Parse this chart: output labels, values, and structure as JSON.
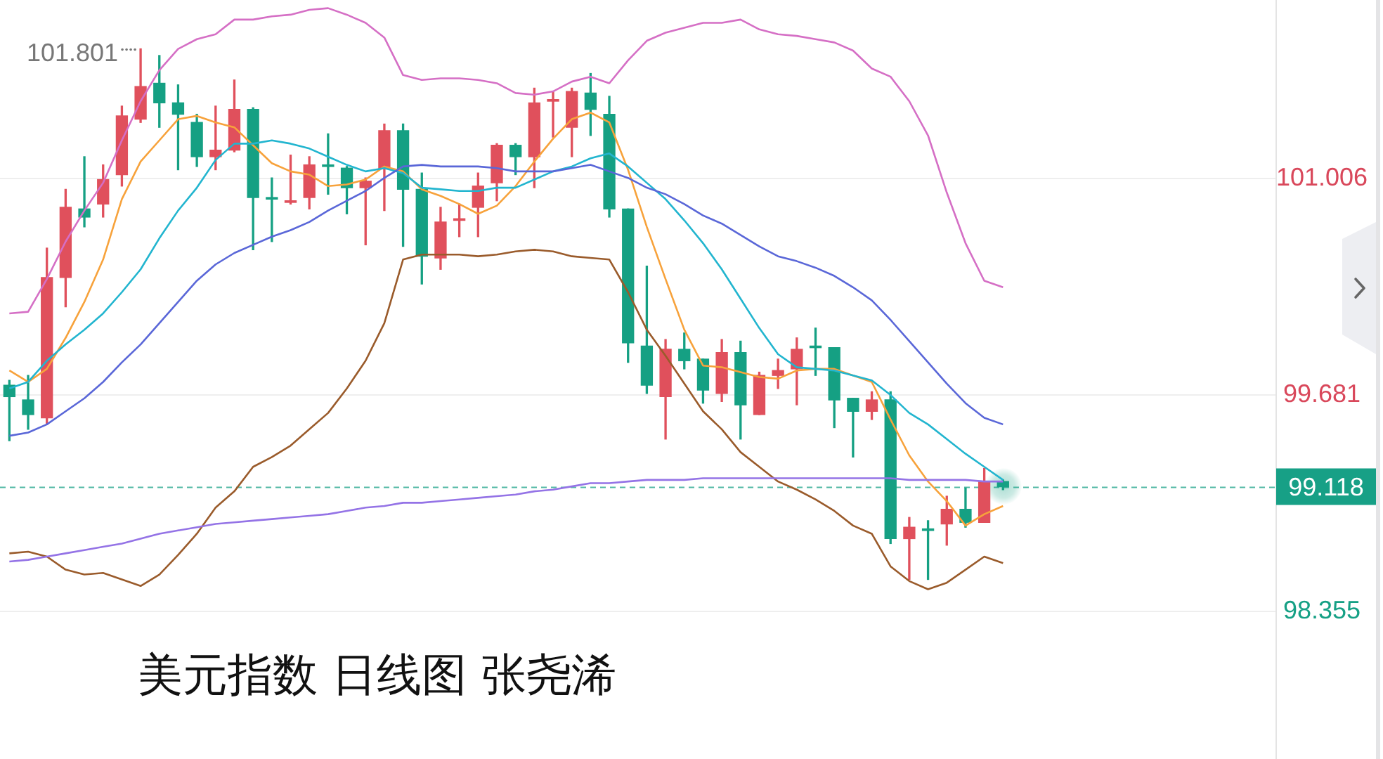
{
  "chart_data": {
    "type": "candlestick",
    "title": "美元指数 日线图 张尧浠",
    "categories": [
      null,
      null,
      null,
      null,
      null,
      null,
      null,
      null,
      null,
      null,
      null,
      null,
      null,
      null,
      null,
      null,
      null,
      null,
      null,
      null,
      null,
      null,
      null,
      null,
      null,
      null,
      null,
      null,
      null,
      null,
      null,
      null,
      null,
      null,
      null,
      null,
      null,
      null,
      null,
      null,
      null,
      null,
      null,
      null,
      null,
      null,
      null,
      null,
      null,
      null,
      null,
      null,
      null,
      null
    ],
    "ohlc": [
      [
        99.74,
        99.77,
        99.4,
        99.67
      ],
      [
        99.65,
        99.8,
        99.47,
        99.56
      ],
      [
        99.54,
        100.58,
        99.5,
        100.4
      ],
      [
        100.4,
        100.94,
        100.22,
        100.83
      ],
      [
        100.82,
        101.14,
        100.71,
        100.77
      ],
      [
        100.85,
        101.09,
        100.77,
        101.0
      ],
      [
        101.03,
        101.45,
        100.96,
        101.39
      ],
      [
        101.37,
        101.801,
        101.35,
        101.57
      ],
      [
        101.59,
        101.76,
        101.32,
        101.47
      ],
      [
        101.47,
        101.58,
        101.06,
        101.4
      ],
      [
        101.35,
        101.4,
        101.08,
        101.14
      ],
      [
        101.14,
        101.45,
        101.06,
        101.18
      ],
      [
        101.18,
        101.61,
        101.17,
        101.43
      ],
      [
        101.43,
        101.44,
        100.57,
        100.89
      ],
      [
        100.89,
        101.01,
        100.62,
        100.88
      ],
      [
        100.86,
        101.15,
        100.85,
        100.87
      ],
      [
        100.89,
        101.14,
        100.82,
        101.09
      ],
      [
        101.09,
        101.28,
        100.91,
        101.08
      ],
      [
        101.07,
        101.08,
        100.79,
        100.95
      ],
      [
        100.95,
        101.01,
        100.6,
        100.99
      ],
      [
        101.07,
        101.34,
        100.81,
        101.3
      ],
      [
        101.3,
        101.34,
        100.59,
        100.94
      ],
      [
        100.94,
        101.04,
        100.36,
        100.53
      ],
      [
        100.52,
        100.83,
        100.45,
        100.74
      ],
      [
        100.75,
        100.85,
        100.65,
        100.76
      ],
      [
        100.83,
        101.04,
        100.65,
        100.96
      ],
      [
        100.98,
        101.22,
        100.87,
        101.21
      ],
      [
        101.21,
        101.22,
        101.03,
        101.14
      ],
      [
        101.14,
        101.56,
        100.95,
        101.47
      ],
      [
        101.48,
        101.54,
        101.26,
        101.49
      ],
      [
        101.32,
        101.56,
        101.14,
        101.54
      ],
      [
        101.53,
        101.65,
        101.27,
        101.43
      ],
      [
        101.4,
        101.51,
        100.77,
        100.82
      ],
      [
        100.82,
        100.82,
        99.88,
        100.0
      ],
      [
        99.98,
        100.47,
        99.69,
        99.74
      ],
      [
        99.67,
        100.02,
        99.41,
        99.96
      ],
      [
        99.96,
        100.06,
        99.84,
        99.89
      ],
      [
        99.9,
        99.9,
        99.63,
        99.71
      ],
      [
        99.69,
        100.02,
        99.64,
        99.94
      ],
      [
        99.94,
        100.01,
        99.41,
        99.62
      ],
      [
        99.56,
        99.82,
        99.56,
        99.8
      ],
      [
        99.8,
        99.9,
        99.72,
        99.83
      ],
      [
        99.84,
        100.03,
        99.62,
        99.96
      ],
      [
        99.98,
        100.09,
        99.8,
        99.97
      ],
      [
        99.97,
        99.97,
        99.48,
        99.65
      ],
      [
        99.66,
        99.66,
        99.3,
        99.58
      ],
      [
        99.58,
        99.7,
        99.53,
        99.65
      ],
      [
        99.65,
        99.7,
        98.77,
        98.8
      ],
      [
        98.8,
        98.93,
        98.55,
        98.87
      ],
      [
        98.86,
        98.91,
        98.55,
        98.85
      ],
      [
        98.89,
        99.06,
        98.76,
        98.98
      ],
      [
        98.98,
        99.11,
        98.87,
        98.9
      ],
      [
        98.9,
        99.23,
        98.9,
        99.15
      ],
      [
        99.15,
        99.16,
        99.1,
        99.118
      ]
    ],
    "colors": [
      "#15a083",
      "#15a083",
      "#e0505c",
      "#e0505c",
      "#15a083",
      "#e0505c",
      "#e0505c",
      "#e0505c",
      "#15a083",
      "#15a083",
      "#15a083",
      "#e0505c",
      "#e0505c",
      "#15a083",
      "#15a083",
      "#e0505c",
      "#e0505c",
      "#15a083",
      "#15a083",
      "#e0505c",
      "#e0505c",
      "#15a083",
      "#15a083",
      "#e0505c",
      "#e0505c",
      "#e0505c",
      "#e0505c",
      "#15a083",
      "#e0505c",
      "#e0505c",
      "#e0505c",
      "#15a083",
      "#15a083",
      "#15a083",
      "#15a083",
      "#e0505c",
      "#15a083",
      "#15a083",
      "#e0505c",
      "#15a083",
      "#e0505c",
      "#e0505c",
      "#e0505c",
      "#15a083",
      "#15a083",
      "#15a083",
      "#e0505c",
      "#15a083",
      "#e0505c",
      "#15a083",
      "#e0505c",
      "#15a083",
      "#e0505c",
      "#15a083"
    ],
    "series": [
      {
        "type": "line",
        "color": "#9473e6",
        "values": [
          98.66,
          98.67,
          98.69,
          98.71,
          98.73,
          98.75,
          98.77,
          98.8,
          98.83,
          98.85,
          98.87,
          98.89,
          98.9,
          98.91,
          98.92,
          98.93,
          98.94,
          98.95,
          98.97,
          98.99,
          99.0,
          99.02,
          99.02,
          99.03,
          99.04,
          99.05,
          99.06,
          99.07,
          99.09,
          99.1,
          99.12,
          99.14,
          99.14,
          99.15,
          99.16,
          99.16,
          99.16,
          99.17,
          99.17,
          99.17,
          99.17,
          99.17,
          99.17,
          99.17,
          99.17,
          99.17,
          99.17,
          99.17,
          99.16,
          99.16,
          99.16,
          99.16,
          99.15,
          99.15
        ]
      },
      {
        "type": "line",
        "color": "#d56fc5",
        "values": [
          100.18,
          100.19,
          100.39,
          100.62,
          100.81,
          100.98,
          101.24,
          101.48,
          101.67,
          101.8,
          101.86,
          101.89,
          101.98,
          101.98,
          102.0,
          102.01,
          102.04,
          102.05,
          102.01,
          101.96,
          101.87,
          101.64,
          101.61,
          101.62,
          101.62,
          101.61,
          101.59,
          101.53,
          101.52,
          101.54,
          101.6,
          101.63,
          101.59,
          101.73,
          101.85,
          101.9,
          101.93,
          101.96,
          101.96,
          101.98,
          101.92,
          101.89,
          101.88,
          101.86,
          101.84,
          101.79,
          101.68,
          101.63,
          101.48,
          101.27,
          100.92,
          100.61,
          100.38,
          100.34
        ]
      },
      {
        "type": "line",
        "color": "#9a5b2b",
        "values": [
          98.71,
          98.72,
          98.69,
          98.61,
          98.58,
          98.59,
          98.55,
          98.51,
          98.58,
          98.7,
          98.83,
          98.99,
          99.09,
          99.24,
          99.3,
          99.37,
          99.47,
          99.57,
          99.72,
          99.89,
          100.12,
          100.51,
          100.54,
          100.54,
          100.54,
          100.53,
          100.54,
          100.56,
          100.57,
          100.56,
          100.53,
          100.52,
          100.51,
          100.31,
          100.08,
          99.92,
          99.75,
          99.58,
          99.47,
          99.33,
          99.24,
          99.15,
          99.1,
          99.04,
          98.97,
          98.88,
          98.83,
          98.63,
          98.54,
          98.49,
          98.53,
          98.61,
          98.69,
          98.65
        ]
      },
      {
        "type": "line",
        "color": "#5a67d8",
        "values": [
          99.43,
          99.45,
          99.5,
          99.58,
          99.66,
          99.76,
          99.88,
          99.99,
          100.12,
          100.25,
          100.38,
          100.48,
          100.55,
          100.6,
          100.65,
          100.69,
          100.74,
          100.81,
          100.87,
          100.93,
          101.01,
          101.08,
          101.09,
          101.08,
          101.08,
          101.08,
          101.07,
          101.05,
          101.05,
          101.05,
          101.07,
          101.09,
          101.05,
          101.01,
          100.95,
          100.91,
          100.85,
          100.78,
          100.73,
          100.66,
          100.59,
          100.53,
          100.5,
          100.46,
          100.41,
          100.34,
          100.26,
          100.14,
          100.01,
          99.88,
          99.75,
          99.63,
          99.54,
          99.5
        ]
      },
      {
        "type": "line",
        "color": "#22b5cf",
        "values": [
          99.72,
          99.76,
          99.89,
          99.99,
          100.08,
          100.18,
          100.31,
          100.45,
          100.64,
          100.81,
          100.95,
          101.12,
          101.22,
          101.22,
          101.24,
          101.22,
          101.19,
          101.14,
          101.09,
          101.05,
          101.07,
          101.04,
          100.95,
          100.94,
          100.93,
          100.93,
          100.95,
          100.95,
          101.0,
          101.05,
          101.08,
          101.13,
          101.16,
          101.08,
          100.98,
          100.88,
          100.75,
          100.61,
          100.45,
          100.27,
          100.09,
          99.93,
          99.85,
          99.84,
          99.83,
          99.8,
          99.77,
          99.68,
          99.57,
          99.5,
          99.41,
          99.32,
          99.24,
          99.16
        ]
      },
      {
        "type": "line",
        "color": "#f7a23b",
        "values": [
          99.83,
          99.76,
          99.84,
          100.03,
          100.25,
          100.51,
          100.88,
          101.11,
          101.24,
          101.37,
          101.39,
          101.35,
          101.32,
          101.21,
          101.1,
          101.05,
          101.03,
          100.96,
          100.97,
          101.0,
          101.08,
          101.05,
          100.94,
          100.9,
          100.85,
          100.79,
          100.84,
          100.96,
          101.11,
          101.25,
          101.37,
          101.41,
          101.35,
          101.06,
          100.71,
          100.39,
          100.08,
          99.86,
          99.85,
          99.82,
          99.79,
          99.78,
          99.83,
          99.84,
          99.84,
          99.8,
          99.76,
          99.53,
          99.31,
          99.15,
          99.03,
          98.88,
          98.95,
          99.0
        ]
      }
    ],
    "ylim": [
      97.45,
      102.1
    ],
    "yticks": [
      98.355,
      99.681,
      101.006
    ],
    "grid": "y",
    "tick_labels": "y",
    "ref_lines": [
      {
        "axis": "y",
        "value": 99.118,
        "label": "99.118",
        "color": "#17a086",
        "line_style": "dashed"
      }
    ],
    "annotations": [
      "101.801"
    ]
  }
}
